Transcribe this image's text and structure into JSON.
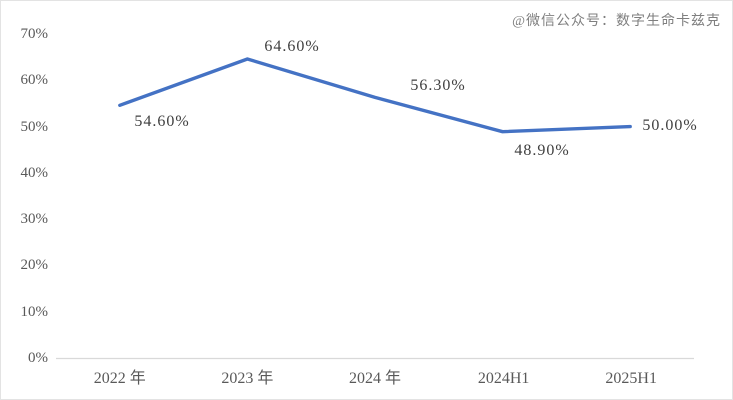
{
  "watermark": "@微信公众号：数字生命卡兹克",
  "chart_data": {
    "type": "line",
    "title": "",
    "categories": [
      "2022 年",
      "2023 年",
      "2024 年",
      "2024H1",
      "2025H1"
    ],
    "values": [
      54.6,
      64.6,
      56.3,
      48.9,
      50.0
    ],
    "point_labels": [
      "54.60%",
      "64.60%",
      "56.30%",
      "48.90%",
      "50.00%"
    ],
    "y_ticks": [
      "0%",
      "10%",
      "20%",
      "30%",
      "40%",
      "50%",
      "60%",
      "70%"
    ],
    "ylim": [
      0,
      70
    ],
    "grid": "off",
    "legend": "none",
    "line_color": "#4472C4",
    "axis_color": "#D9D9D9",
    "tick_label_color": "#595959",
    "data_label_color": "#3F3F3F"
  }
}
